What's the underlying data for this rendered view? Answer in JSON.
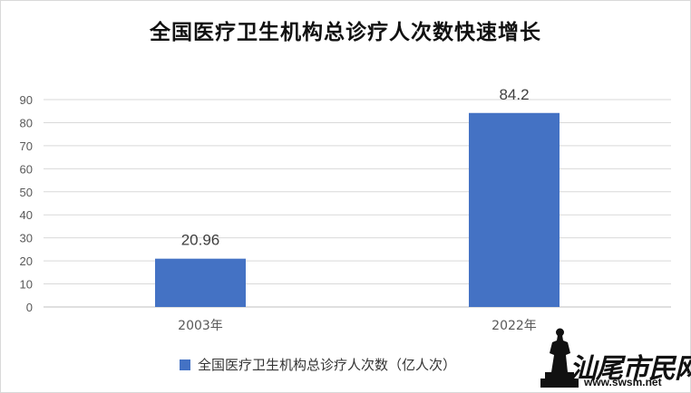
{
  "chart_data": {
    "type": "bar",
    "title": "全国医疗卫生机构总诊疗人次数快速增长",
    "categories": [
      "2003年",
      "2022年"
    ],
    "series": [
      {
        "name": "全国医疗卫生机构总诊疗人次数（亿人次）",
        "values": [
          20.96,
          84.2
        ],
        "color": "#4472c4"
      }
    ],
    "data_labels": [
      "20.96",
      "84.2"
    ],
    "ylim": [
      0,
      90
    ],
    "yticks": [
      0,
      10,
      20,
      30,
      40,
      50,
      60,
      70,
      80,
      90
    ],
    "grid": true,
    "legend_position": "bottom"
  },
  "watermark": {
    "text": "汕尾市民网",
    "url": "www.swsm.net"
  }
}
